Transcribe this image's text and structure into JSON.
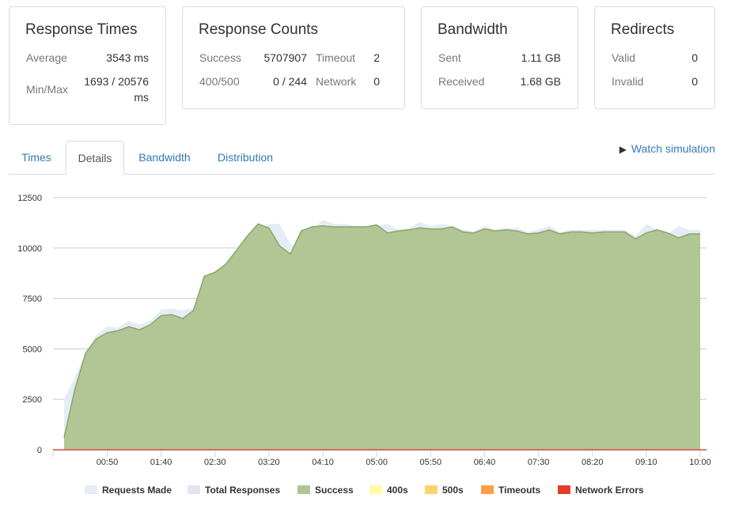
{
  "cards": {
    "response_times": {
      "title": "Response Times",
      "average_label": "Average",
      "average_value": "3543 ms",
      "minmax_label": "Min/Max",
      "minmax_value_1": "1693 / 20576",
      "minmax_value_2": "ms"
    },
    "response_counts": {
      "title": "Response Counts",
      "success_label": "Success",
      "success_value": "5707907",
      "timeout_label": "Timeout",
      "timeout_value": "2",
      "errors_label": "400/500",
      "errors_value": "0 / 244",
      "network_label": "Network",
      "network_value": "0"
    },
    "bandwidth": {
      "title": "Bandwidth",
      "sent_label": "Sent",
      "sent_value": "1.11 GB",
      "received_label": "Received",
      "received_value": "1.68 GB"
    },
    "redirects": {
      "title": "Redirects",
      "valid_label": "Valid",
      "valid_value": "0",
      "invalid_label": "Invalid",
      "invalid_value": "0"
    }
  },
  "tabs": [
    {
      "label": "Times",
      "active": false
    },
    {
      "label": "Details",
      "active": true
    },
    {
      "label": "Bandwidth",
      "active": false
    },
    {
      "label": "Distribution",
      "active": false
    }
  ],
  "watch_simulation": {
    "icon": "play-icon",
    "label": "Watch simulation"
  },
  "colors": {
    "requests_made": "#e4edf5",
    "total_responses": "#e8e0f0",
    "success": "#b2c594",
    "success_stroke": "#8aa66a",
    "e400s": "#fffbaa",
    "e500s": "#ffd36b",
    "timeouts": "#ff9e48",
    "network_errors": "#e53d2c",
    "grid": "#cccccc",
    "tab_link": "#337ab7"
  },
  "chart_data": {
    "type": "area",
    "x_ticks": [
      "00:50",
      "01:40",
      "02:30",
      "03:20",
      "04:10",
      "05:00",
      "05:50",
      "06:40",
      "07:30",
      "08:20",
      "09:10",
      "10:00"
    ],
    "y_ticks": [
      "0",
      "2500",
      "5000",
      "7500",
      "10000",
      "12500"
    ],
    "ylim": [
      0,
      12500
    ],
    "xlim_seconds": [
      0,
      600
    ],
    "x_seconds": [
      10,
      20,
      30,
      40,
      50,
      60,
      70,
      80,
      90,
      100,
      110,
      120,
      130,
      140,
      150,
      160,
      170,
      180,
      190,
      200,
      210,
      220,
      230,
      240,
      250,
      260,
      270,
      280,
      290,
      300,
      310,
      320,
      330,
      340,
      350,
      360,
      370,
      380,
      390,
      400,
      410,
      420,
      430,
      440,
      450,
      460,
      470,
      480,
      490,
      500,
      510,
      520,
      530,
      540,
      550,
      560,
      570,
      580,
      590,
      600
    ],
    "series": [
      {
        "name": "Requests Made",
        "values": [
          2500,
          3600,
          4800,
          5700,
          6100,
          6050,
          6400,
          6200,
          6400,
          6950,
          7000,
          6900,
          7050,
          7050,
          8700,
          9000,
          9400,
          10000,
          10700,
          11200,
          11200,
          10200,
          9900,
          10900,
          11400,
          11200,
          11200,
          11100,
          11100,
          11100,
          11200,
          10900,
          11000,
          11300,
          11100,
          11200,
          11100,
          10900,
          10800,
          11100,
          10900,
          11000,
          11000,
          10800,
          10900,
          11100,
          10800,
          10900,
          10900,
          10900,
          10900,
          10900,
          10900,
          10600,
          11200,
          10900,
          10700,
          11100,
          10900,
          10900
        ]
      },
      {
        "name": "Total Responses",
        "values": [
          600,
          3000,
          4800,
          5500,
          5800,
          5900,
          6100,
          5950,
          6200,
          6650,
          6700,
          6500,
          6900,
          8600,
          8800,
          9200,
          9900,
          10600,
          11200,
          11000,
          10100,
          9700,
          10850,
          11050,
          11100,
          11050,
          11050,
          11050,
          11050,
          11150,
          10750,
          10850,
          10900,
          11000,
          10950,
          10950,
          11050,
          10800,
          10750,
          10950,
          10850,
          10900,
          10850,
          10700,
          10750,
          10900,
          10700,
          10800,
          10800,
          10750,
          10800,
          10800,
          10800,
          10450,
          10750,
          10900,
          10750,
          10500,
          10700,
          10700
        ]
      },
      {
        "name": "Success",
        "values": [
          600,
          3000,
          4800,
          5500,
          5800,
          5900,
          6100,
          5950,
          6200,
          6650,
          6700,
          6500,
          6900,
          8600,
          8800,
          9200,
          9900,
          10600,
          11200,
          11000,
          10100,
          9700,
          10850,
          11050,
          11100,
          11050,
          11050,
          11050,
          11050,
          11150,
          10750,
          10850,
          10900,
          11000,
          10950,
          10950,
          11050,
          10800,
          10750,
          10950,
          10850,
          10900,
          10850,
          10700,
          10750,
          10900,
          10700,
          10800,
          10800,
          10750,
          10800,
          10800,
          10800,
          10450,
          10750,
          10900,
          10750,
          10500,
          10700,
          10700
        ]
      },
      {
        "name": "400s",
        "values": [
          0
        ]
      },
      {
        "name": "500s",
        "values": [
          0
        ]
      },
      {
        "name": "Timeouts",
        "values": [
          0
        ]
      },
      {
        "name": "Network Errors",
        "values": [
          0
        ]
      }
    ],
    "legend": [
      "Requests Made",
      "Total Responses",
      "Success",
      "400s",
      "500s",
      "Timeouts",
      "Network Errors"
    ],
    "legend_position": "bottom",
    "grid": true
  }
}
